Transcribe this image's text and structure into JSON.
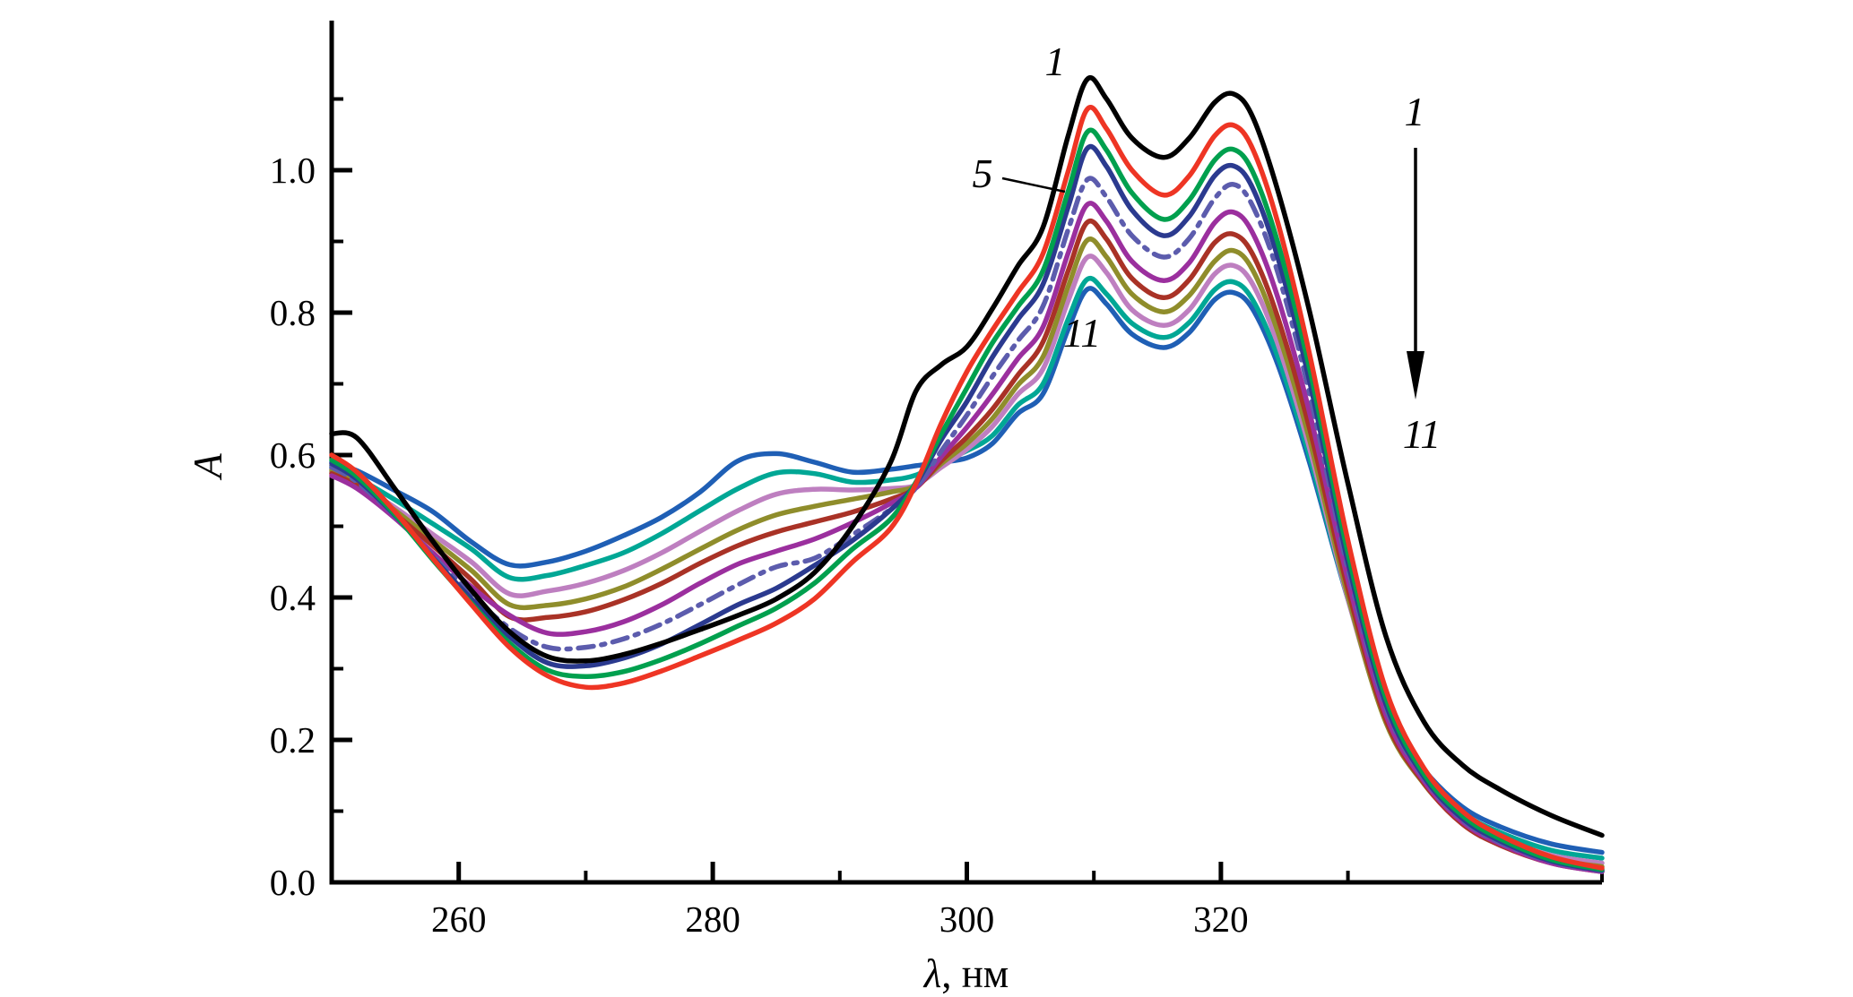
{
  "figure": {
    "background": "#FFFFFF",
    "x_axis": {
      "title_lambda": "λ",
      "title_rest": ", нм",
      "title_full": "λ, нм",
      "range": [
        250,
        350
      ],
      "major_ticks": [
        {
          "value": 260,
          "label": "260"
        },
        {
          "value": 280,
          "label": "280"
        },
        {
          "value": 300,
          "label": "300"
        },
        {
          "value": 320,
          "label": "320"
        }
      ],
      "minor_ticks": [
        270,
        290,
        310,
        330,
        350
      ]
    },
    "y_axis": {
      "title": "A",
      "range": [
        0,
        1.21
      ],
      "major_ticks": [
        {
          "value": 0.0,
          "label": "0.0"
        },
        {
          "value": 0.2,
          "label": "0.2"
        },
        {
          "value": 0.4,
          "label": "0.4"
        },
        {
          "value": 0.6,
          "label": "0.6"
        },
        {
          "value": 0.8,
          "label": "0.8"
        },
        {
          "value": 1.0,
          "label": "1.0"
        }
      ],
      "minor_ticks": [
        0.1,
        0.3,
        0.5,
        0.7,
        0.9,
        1.1
      ]
    },
    "annotations": {
      "curve1_label": "1",
      "curve5_label": "5",
      "curve11_label": "11",
      "arrow_top_label": "1",
      "arrow_bottom_label": "11",
      "arrow_icon": "down-arrow"
    }
  },
  "chart_data": {
    "type": "line",
    "title": "",
    "xlabel": "λ, нм",
    "ylabel": "A",
    "xlim": [
      250,
      350
    ],
    "ylim": [
      0,
      1.21
    ],
    "grid": false,
    "legend_position": "none",
    "x": [
      250,
      252,
      255,
      258,
      261,
      264,
      267,
      270,
      273,
      276,
      279,
      282,
      285,
      288,
      291,
      294,
      296,
      298,
      300,
      302,
      304,
      306,
      308,
      309.5,
      311,
      313,
      315.5,
      317.5,
      319.5,
      321,
      322.5,
      324.5,
      327,
      330,
      333,
      336,
      339,
      342,
      346,
      350
    ],
    "series": [
      {
        "name": "1",
        "color": "#000000",
        "dash": "solid",
        "values": [
          0.63,
          0.624,
          0.552,
          0.478,
          0.41,
          0.352,
          0.317,
          0.311,
          0.32,
          0.336,
          0.355,
          0.375,
          0.398,
          0.435,
          0.5,
          0.59,
          0.69,
          0.727,
          0.752,
          0.805,
          0.865,
          0.92,
          1.05,
          1.128,
          1.1,
          1.045,
          1.018,
          1.045,
          1.095,
          1.107,
          1.075,
          0.97,
          0.8,
          0.56,
          0.345,
          0.225,
          0.165,
          0.13,
          0.094,
          0.066
        ]
      },
      {
        "name": "2",
        "color": "#EE3524",
        "dash": "solid",
        "values": [
          0.6,
          0.576,
          0.52,
          0.454,
          0.39,
          0.33,
          0.29,
          0.274,
          0.28,
          0.297,
          0.318,
          0.34,
          0.364,
          0.398,
          0.45,
          0.497,
          0.56,
          0.645,
          0.717,
          0.775,
          0.828,
          0.883,
          1.0,
          1.086,
          1.058,
          1.0,
          0.965,
          0.992,
          1.048,
          1.063,
          1.03,
          0.925,
          0.74,
          0.48,
          0.27,
          0.16,
          0.1,
          0.066,
          0.036,
          0.02
        ]
      },
      {
        "name": "3",
        "color": "#00A04E",
        "dash": "solid",
        "values": [
          0.593,
          0.57,
          0.516,
          0.452,
          0.392,
          0.336,
          0.298,
          0.289,
          0.296,
          0.313,
          0.335,
          0.36,
          0.385,
          0.42,
          0.468,
          0.51,
          0.562,
          0.63,
          0.694,
          0.757,
          0.808,
          0.859,
          0.972,
          1.054,
          1.028,
          0.968,
          0.931,
          0.958,
          1.014,
          1.029,
          0.998,
          0.897,
          0.72,
          0.462,
          0.258,
          0.152,
          0.094,
          0.061,
          0.032,
          0.018
        ]
      },
      {
        "name": "4",
        "color": "#2B3A8F",
        "dash": "solid",
        "values": [
          0.588,
          0.566,
          0.515,
          0.455,
          0.398,
          0.345,
          0.308,
          0.304,
          0.315,
          0.335,
          0.362,
          0.39,
          0.413,
          0.445,
          0.48,
          0.523,
          0.56,
          0.622,
          0.675,
          0.737,
          0.79,
          0.84,
          0.95,
          1.031,
          1.005,
          0.944,
          0.908,
          0.935,
          0.992,
          1.006,
          0.975,
          0.876,
          0.702,
          0.45,
          0.25,
          0.148,
          0.09,
          0.058,
          0.03,
          0.017
        ]
      },
      {
        "name": "5",
        "color": "#5C5CAD",
        "dash": "dashdot",
        "values": [
          0.583,
          0.562,
          0.514,
          0.458,
          0.404,
          0.357,
          0.33,
          0.33,
          0.342,
          0.363,
          0.39,
          0.418,
          0.443,
          0.455,
          0.488,
          0.524,
          0.554,
          0.606,
          0.656,
          0.71,
          0.76,
          0.809,
          0.918,
          0.987,
          0.962,
          0.908,
          0.878,
          0.904,
          0.96,
          0.98,
          0.95,
          0.855,
          0.685,
          0.44,
          0.245,
          0.146,
          0.088,
          0.056,
          0.029,
          0.016
        ]
      },
      {
        "name": "6",
        "color": "#9B2F9E",
        "dash": "solid",
        "values": [
          0.571,
          0.553,
          0.511,
          0.462,
          0.415,
          0.375,
          0.35,
          0.352,
          0.366,
          0.39,
          0.42,
          0.447,
          0.465,
          0.482,
          0.505,
          0.532,
          0.554,
          0.598,
          0.639,
          0.685,
          0.735,
          0.78,
          0.885,
          0.952,
          0.928,
          0.872,
          0.845,
          0.87,
          0.926,
          0.941,
          0.912,
          0.82,
          0.658,
          0.425,
          0.235,
          0.142,
          0.085,
          0.054,
          0.027,
          0.015
        ]
      },
      {
        "name": "7",
        "color": "#A93226",
        "dash": "solid",
        "values": [
          0.574,
          0.557,
          0.517,
          0.472,
          0.425,
          0.373,
          0.372,
          0.38,
          0.397,
          0.42,
          0.448,
          0.473,
          0.492,
          0.506,
          0.52,
          0.538,
          0.554,
          0.592,
          0.625,
          0.664,
          0.712,
          0.759,
          0.86,
          0.927,
          0.903,
          0.848,
          0.821,
          0.846,
          0.898,
          0.91,
          0.882,
          0.792,
          0.636,
          0.412,
          0.228,
          0.139,
          0.082,
          0.052,
          0.027,
          0.015
        ]
      },
      {
        "name": "8",
        "color": "#8F8D2B",
        "dash": "solid",
        "values": [
          0.578,
          0.56,
          0.522,
          0.48,
          0.438,
          0.39,
          0.389,
          0.398,
          0.415,
          0.44,
          0.468,
          0.495,
          0.516,
          0.528,
          0.538,
          0.548,
          0.557,
          0.588,
          0.616,
          0.651,
          0.698,
          0.738,
          0.838,
          0.902,
          0.878,
          0.826,
          0.801,
          0.824,
          0.872,
          0.887,
          0.86,
          0.772,
          0.62,
          0.402,
          0.224,
          0.138,
          0.084,
          0.056,
          0.033,
          0.022
        ]
      },
      {
        "name": "9",
        "color": "#BE7FC0",
        "dash": "solid",
        "values": [
          0.576,
          0.56,
          0.526,
          0.488,
          0.45,
          0.405,
          0.409,
          0.42,
          0.438,
          0.463,
          0.493,
          0.522,
          0.545,
          0.552,
          0.551,
          0.553,
          0.558,
          0.583,
          0.608,
          0.64,
          0.685,
          0.721,
          0.818,
          0.878,
          0.856,
          0.804,
          0.782,
          0.804,
          0.854,
          0.866,
          0.84,
          0.755,
          0.608,
          0.398,
          0.226,
          0.142,
          0.09,
          0.062,
          0.038,
          0.027
        ]
      },
      {
        "name": "10",
        "color": "#00A795",
        "dash": "solid",
        "values": [
          0.583,
          0.568,
          0.537,
          0.503,
          0.468,
          0.428,
          0.431,
          0.445,
          0.463,
          0.49,
          0.522,
          0.553,
          0.575,
          0.574,
          0.562,
          0.565,
          0.572,
          0.59,
          0.606,
          0.627,
          0.67,
          0.7,
          0.792,
          0.847,
          0.826,
          0.785,
          0.765,
          0.786,
          0.832,
          0.843,
          0.818,
          0.737,
          0.596,
          0.398,
          0.232,
          0.15,
          0.098,
          0.07,
          0.045,
          0.034
        ]
      },
      {
        "name": "11",
        "color": "#1F5FB5",
        "dash": "solid",
        "values": [
          0.59,
          0.578,
          0.55,
          0.52,
          0.478,
          0.446,
          0.45,
          0.465,
          0.487,
          0.513,
          0.548,
          0.592,
          0.602,
          0.59,
          0.576,
          0.58,
          0.585,
          0.59,
          0.596,
          0.616,
          0.658,
          0.686,
          0.778,
          0.833,
          0.812,
          0.77,
          0.751,
          0.772,
          0.818,
          0.828,
          0.805,
          0.726,
          0.588,
          0.398,
          0.238,
          0.158,
          0.106,
          0.078,
          0.054,
          0.042
        ]
      }
    ]
  }
}
